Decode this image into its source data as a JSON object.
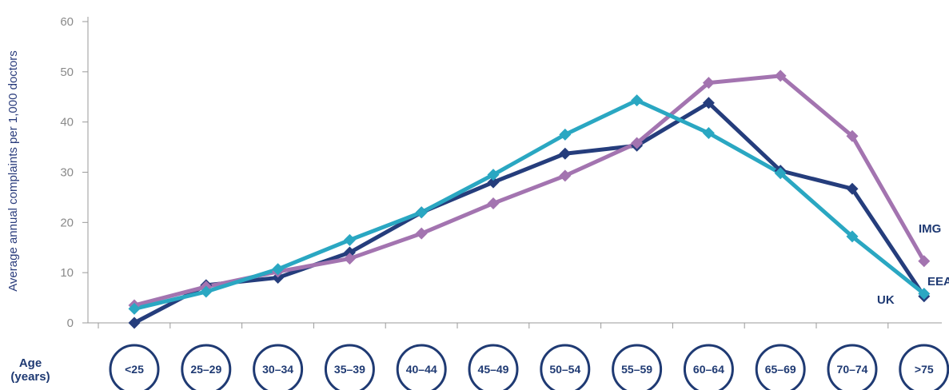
{
  "chart_data": {
    "type": "line",
    "title": "",
    "ylabel": "Average annual complaints per 1,000 doctors",
    "xlabel": "Age (years)",
    "xlabel_lines": [
      "Age",
      "(years)"
    ],
    "ylim": [
      0,
      60
    ],
    "yticks": [
      "0",
      "10",
      "20",
      "30",
      "40",
      "50",
      "60"
    ],
    "grid": false,
    "categories": [
      "<25",
      "25–29",
      "30–34",
      "35–39",
      "40–44",
      "45–49",
      "50–54",
      "55–59",
      "60–64",
      "65–69",
      "70–74",
      ">75"
    ],
    "series": [
      {
        "name": "UK",
        "color": "#253d7c",
        "values": [
          0,
          7.5,
          9,
          14,
          22,
          28,
          33.7,
          35.3,
          43.8,
          30.3,
          26.7,
          5.3
        ]
      },
      {
        "name": "IMG",
        "color": "#a374b0",
        "values": [
          3.5,
          7.2,
          10.2,
          12.8,
          17.8,
          23.8,
          29.3,
          35.8,
          47.8,
          49.2,
          37.2,
          12.3
        ]
      },
      {
        "name": "EEA",
        "color": "#2aa7c2",
        "values": [
          2.8,
          6.2,
          10.7,
          16.5,
          22,
          29.5,
          37.5,
          44.3,
          37.8,
          29.8,
          17.2,
          5.8
        ]
      }
    ],
    "legend": "inline labels at right end"
  }
}
